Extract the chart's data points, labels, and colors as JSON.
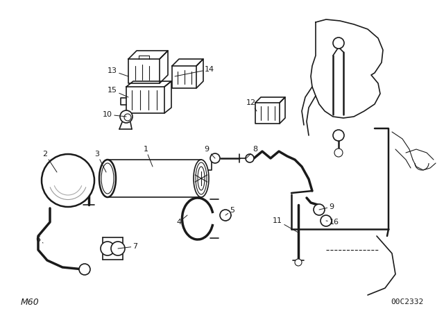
{
  "bg_color": "#ffffff",
  "line_color": "#1a1a1a",
  "text_color": "#1a1a1a",
  "footer_left": "M60",
  "footer_right": "00C2332",
  "figsize": [
    6.4,
    4.48
  ],
  "dpi": 100,
  "xlim": [
    0,
    640
  ],
  "ylim": [
    0,
    448
  ]
}
